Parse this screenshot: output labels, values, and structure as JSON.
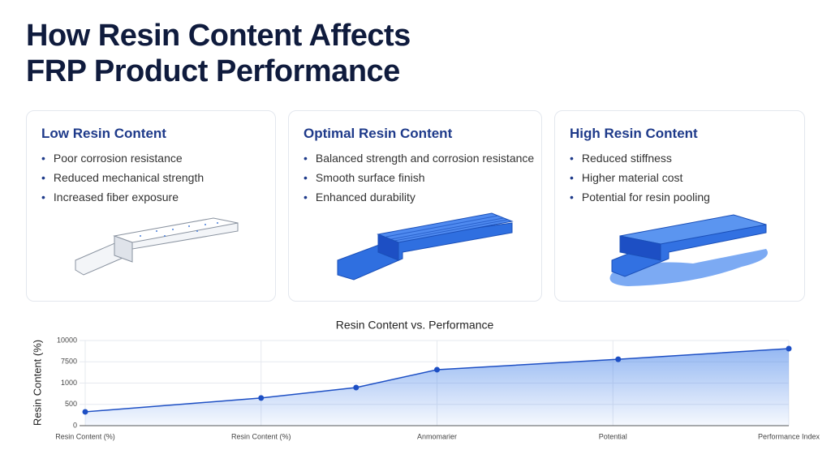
{
  "header": {
    "title": [
      "How Resin Content Affects",
      "FRP Product Performance"
    ]
  },
  "cards": [
    {
      "title": "Low Resin Content",
      "items": [
        "Poor corrosion resistance",
        "Reduced mechanical strength",
        "Increased fiber exposure"
      ]
    },
    {
      "title": "Optimal Resin Content",
      "items": [
        "Balanced strength and corrosion resistance",
        "Smooth surface finish",
        "Enhanced durability"
      ]
    },
    {
      "title": "High Resin Content",
      "items": [
        "Reduced stiffness",
        "Higher material cost",
        "Potential for resin pooling"
      ]
    }
  ],
  "chart_data": {
    "type": "line",
    "title": "Resin Content vs. Performance",
    "y_label": "Resin Content (%)",
    "x": [
      0,
      1,
      1.54,
      2.0,
      3.03,
      4
    ],
    "series": [
      {
        "name": "Resin Content",
        "color": "#1d4fc4",
        "values": [
          0.65,
          1.3,
          1.79,
          2.63,
          3.12,
          3.62
        ]
      }
    ],
    "xlim": [
      0,
      4
    ],
    "xticks": [
      {
        "value": 0,
        "label": "Resin Content (%)"
      },
      {
        "value": 1,
        "label": "Resin Content (%)"
      },
      {
        "value": 2,
        "label": "Anmomarier"
      },
      {
        "value": 3,
        "label": "Potential"
      },
      {
        "value": 4,
        "label": "Performance Index"
      }
    ],
    "ylim": [
      0,
      4
    ],
    "yticks": [
      {
        "value": 0,
        "label": "0"
      },
      {
        "value": 1,
        "label": "500"
      },
      {
        "value": 2,
        "label": "1000"
      },
      {
        "value": 3,
        "label": "7500"
      },
      {
        "value": 4,
        "label": "10000"
      }
    ],
    "grid": true
  }
}
